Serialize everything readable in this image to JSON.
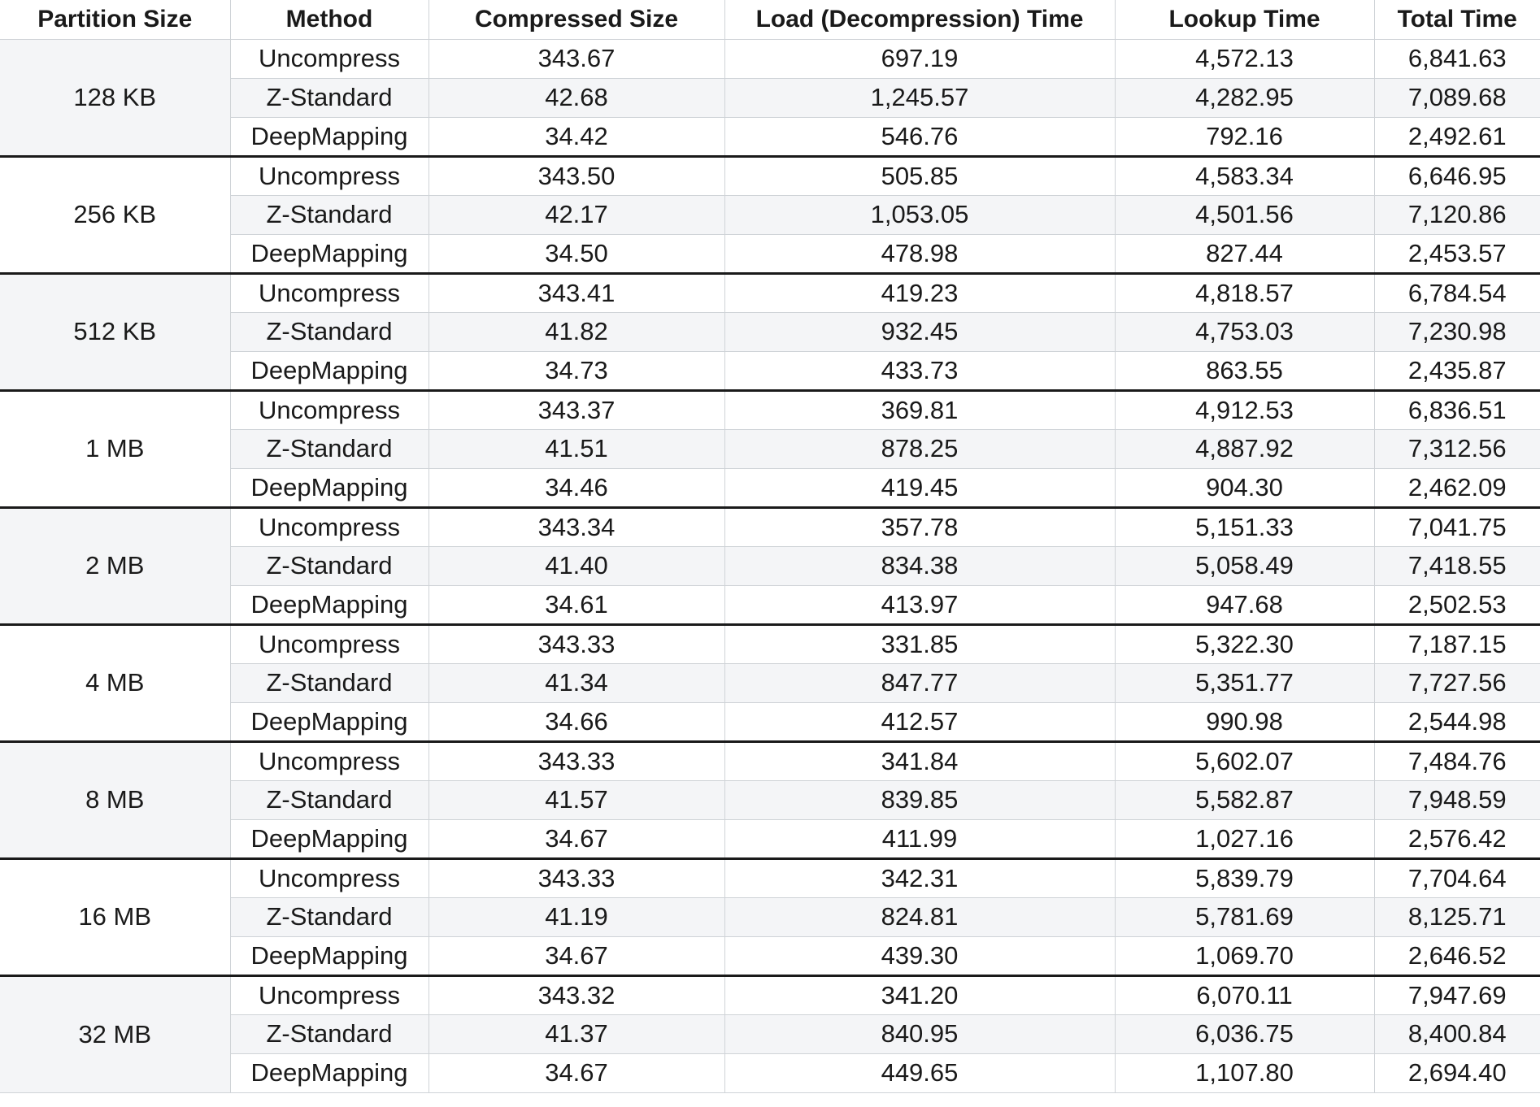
{
  "table": {
    "headers": [
      "Partition Size",
      "Method",
      "Compressed Size",
      "Load (Decompression) Time",
      "Lookup Time",
      "Total Time"
    ],
    "groups": [
      {
        "partition": "128 KB",
        "rows": [
          {
            "method": "Uncompress",
            "compressed": "343.67",
            "load": "697.19",
            "lookup": "4,572.13",
            "total": "6,841.63"
          },
          {
            "method": "Z-Standard",
            "compressed": "42.68",
            "load": "1,245.57",
            "lookup": "4,282.95",
            "total": "7,089.68"
          },
          {
            "method": "DeepMapping",
            "compressed": "34.42",
            "load": "546.76",
            "lookup": "792.16",
            "total": "2,492.61"
          }
        ]
      },
      {
        "partition": "256 KB",
        "rows": [
          {
            "method": "Uncompress",
            "compressed": "343.50",
            "load": "505.85",
            "lookup": "4,583.34",
            "total": "6,646.95"
          },
          {
            "method": "Z-Standard",
            "compressed": "42.17",
            "load": "1,053.05",
            "lookup": "4,501.56",
            "total": "7,120.86"
          },
          {
            "method": "DeepMapping",
            "compressed": "34.50",
            "load": "478.98",
            "lookup": "827.44",
            "total": "2,453.57"
          }
        ]
      },
      {
        "partition": "512 KB",
        "rows": [
          {
            "method": "Uncompress",
            "compressed": "343.41",
            "load": "419.23",
            "lookup": "4,818.57",
            "total": "6,784.54"
          },
          {
            "method": "Z-Standard",
            "compressed": "41.82",
            "load": "932.45",
            "lookup": "4,753.03",
            "total": "7,230.98"
          },
          {
            "method": "DeepMapping",
            "compressed": "34.73",
            "load": "433.73",
            "lookup": "863.55",
            "total": "2,435.87"
          }
        ]
      },
      {
        "partition": "1 MB",
        "rows": [
          {
            "method": "Uncompress",
            "compressed": "343.37",
            "load": "369.81",
            "lookup": "4,912.53",
            "total": "6,836.51"
          },
          {
            "method": "Z-Standard",
            "compressed": "41.51",
            "load": "878.25",
            "lookup": "4,887.92",
            "total": "7,312.56"
          },
          {
            "method": "DeepMapping",
            "compressed": "34.46",
            "load": "419.45",
            "lookup": "904.30",
            "total": "2,462.09"
          }
        ]
      },
      {
        "partition": "2 MB",
        "rows": [
          {
            "method": "Uncompress",
            "compressed": "343.34",
            "load": "357.78",
            "lookup": "5,151.33",
            "total": "7,041.75"
          },
          {
            "method": "Z-Standard",
            "compressed": "41.40",
            "load": "834.38",
            "lookup": "5,058.49",
            "total": "7,418.55"
          },
          {
            "method": "DeepMapping",
            "compressed": "34.61",
            "load": "413.97",
            "lookup": "947.68",
            "total": "2,502.53"
          }
        ]
      },
      {
        "partition": "4 MB",
        "rows": [
          {
            "method": "Uncompress",
            "compressed": "343.33",
            "load": "331.85",
            "lookup": "5,322.30",
            "total": "7,187.15"
          },
          {
            "method": "Z-Standard",
            "compressed": "41.34",
            "load": "847.77",
            "lookup": "5,351.77",
            "total": "7,727.56"
          },
          {
            "method": "DeepMapping",
            "compressed": "34.66",
            "load": "412.57",
            "lookup": "990.98",
            "total": "2,544.98"
          }
        ]
      },
      {
        "partition": "8 MB",
        "rows": [
          {
            "method": "Uncompress",
            "compressed": "343.33",
            "load": "341.84",
            "lookup": "5,602.07",
            "total": "7,484.76"
          },
          {
            "method": "Z-Standard",
            "compressed": "41.57",
            "load": "839.85",
            "lookup": "5,582.87",
            "total": "7,948.59"
          },
          {
            "method": "DeepMapping",
            "compressed": "34.67",
            "load": "411.99",
            "lookup": "1,027.16",
            "total": "2,576.42"
          }
        ]
      },
      {
        "partition": "16 MB",
        "rows": [
          {
            "method": "Uncompress",
            "compressed": "343.33",
            "load": "342.31",
            "lookup": "5,839.79",
            "total": "7,704.64"
          },
          {
            "method": "Z-Standard",
            "compressed": "41.19",
            "load": "824.81",
            "lookup": "5,781.69",
            "total": "8,125.71"
          },
          {
            "method": "DeepMapping",
            "compressed": "34.67",
            "load": "439.30",
            "lookup": "1,069.70",
            "total": "2,646.52"
          }
        ]
      },
      {
        "partition": "32 MB",
        "rows": [
          {
            "method": "Uncompress",
            "compressed": "343.32",
            "load": "341.20",
            "lookup": "6,070.11",
            "total": "7,947.69"
          },
          {
            "method": "Z-Standard",
            "compressed": "41.37",
            "load": "840.95",
            "lookup": "6,036.75",
            "total": "8,400.84"
          },
          {
            "method": "DeepMapping",
            "compressed": "34.67",
            "load": "449.65",
            "lookup": "1,107.80",
            "total": "2,694.40"
          }
        ]
      }
    ]
  }
}
